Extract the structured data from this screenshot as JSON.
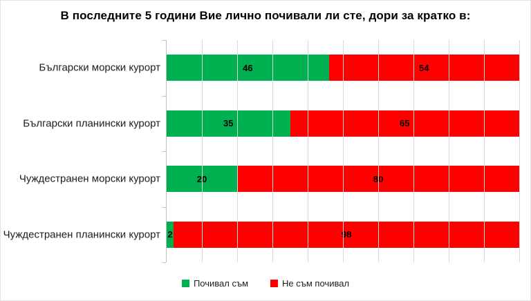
{
  "chart_data": {
    "type": "bar",
    "orientation": "horizontal",
    "stacked": true,
    "title": "В последните 5 години Вие лично почивали ли сте, дори за кратко в:",
    "categories": [
      "Български морски курорт",
      "Български планински курорт",
      "Чуждестранен морски курорт",
      "Чуждестранен планински курорт"
    ],
    "series": [
      {
        "name": "Почивал съм",
        "color": "#00B050",
        "values": [
          46,
          35,
          20,
          2
        ]
      },
      {
        "name": "Не съм почивал",
        "color": "#FF0000",
        "values": [
          54,
          65,
          80,
          98
        ]
      }
    ],
    "xlim": [
      0,
      100
    ],
    "grid": true,
    "gridline_step": 10,
    "legend_position": "bottom",
    "data_labels": true
  },
  "style": {
    "gridline_color": "#D9D9D9",
    "axis_color": "#BFBFBF",
    "title_color": "#000000",
    "label_color": "#1D1D1D",
    "background": "#FFFFFF"
  }
}
